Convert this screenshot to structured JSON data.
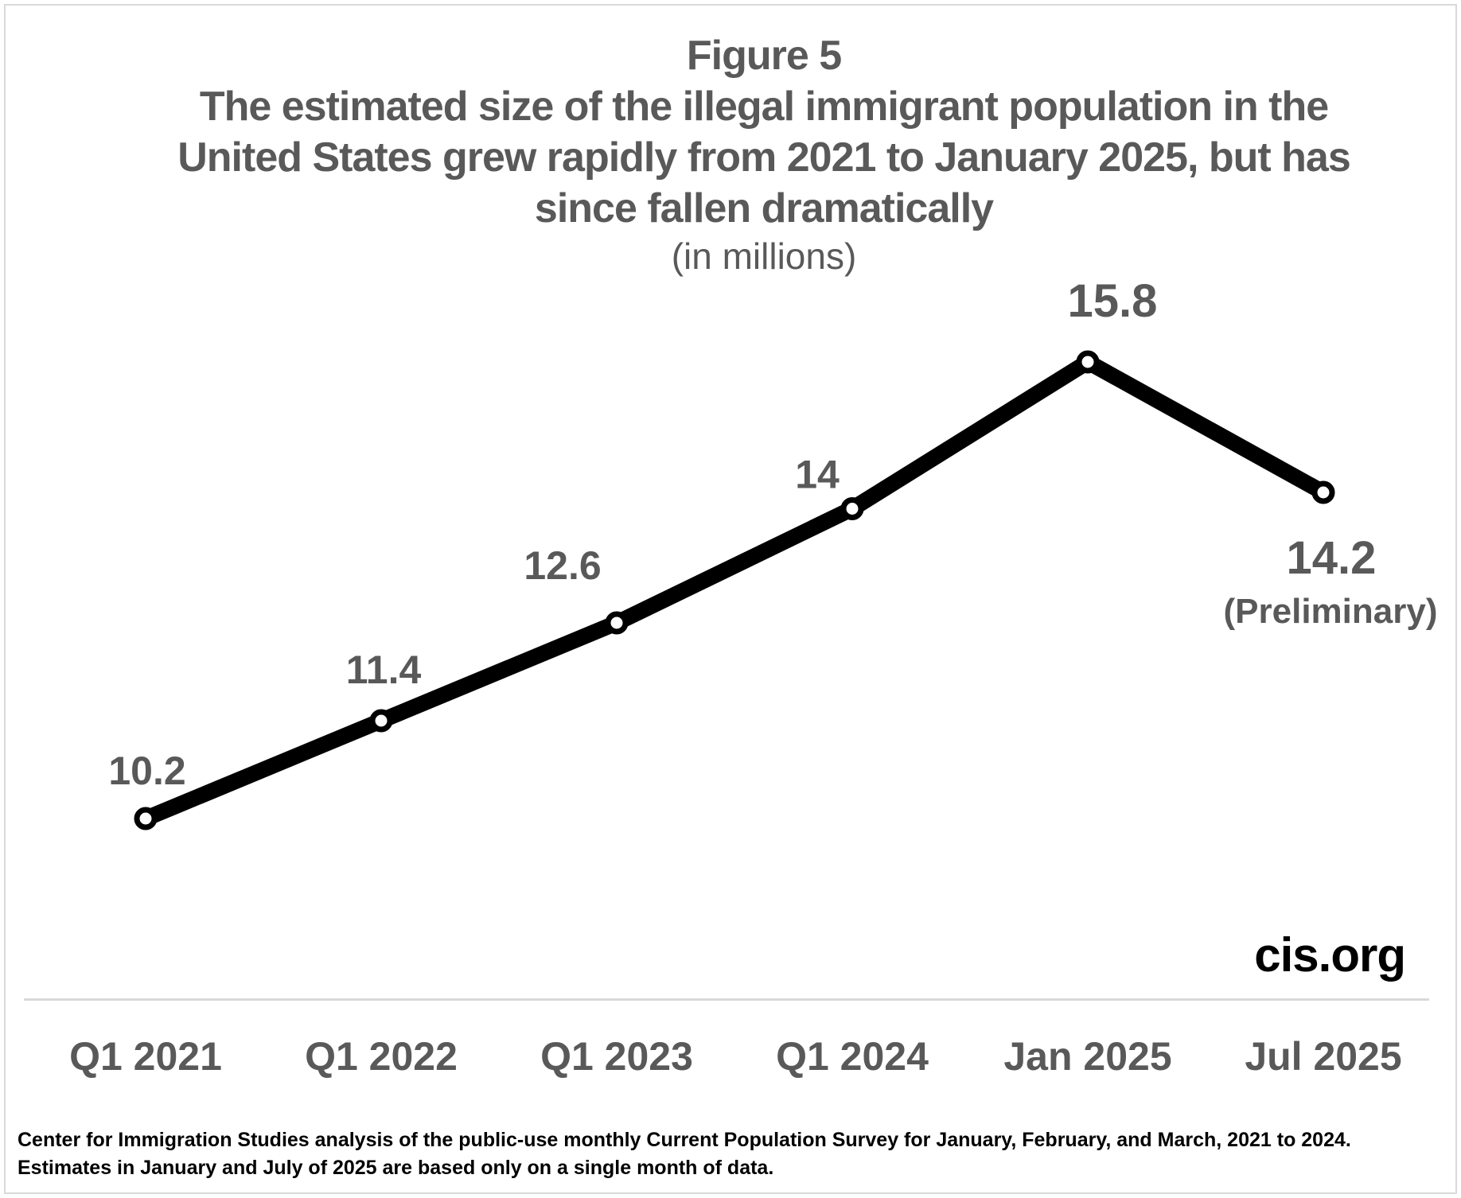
{
  "figure": {
    "label": "Figure 5",
    "title_line1": "The estimated size of the illegal immigrant population in the",
    "title_line2": "United States grew rapidly from 2021 to January 2025, but has",
    "title_line3": "since fallen dramatically",
    "subtitle": "(in millions)"
  },
  "chart_data": {
    "type": "line",
    "title": "The estimated size of the illegal immigrant population in the United States grew rapidly from 2021 to January 2025, but has since fallen dramatically",
    "unit": "in millions",
    "categories": [
      "Q1 2021",
      "Q1 2022",
      "Q1 2023",
      "Q1 2024",
      "Jan 2025",
      "Jul 2025"
    ],
    "values": [
      10.2,
      11.4,
      12.6,
      14,
      15.8,
      14.2
    ],
    "point_labels": [
      "10.2",
      "11.4",
      "12.6",
      "14",
      "15.8",
      "14.2"
    ],
    "last_point_annotation": "(Preliminary)",
    "series_color": "#000000",
    "marker_fill": "#ffffff",
    "label_color": "#595959",
    "axis_line_color": "#d9d9d9",
    "grid": false,
    "legend_position": "none",
    "ylim": [
      10,
      16.5
    ]
  },
  "branding": {
    "site": "cis.org"
  },
  "footnote": {
    "line1": "Center for Immigration Studies analysis of the public-use monthly Current Population Survey for January, February, and March, 2021 to 2024.",
    "line2": "Estimates in January and July of 2025 are based only on a single month of data."
  }
}
